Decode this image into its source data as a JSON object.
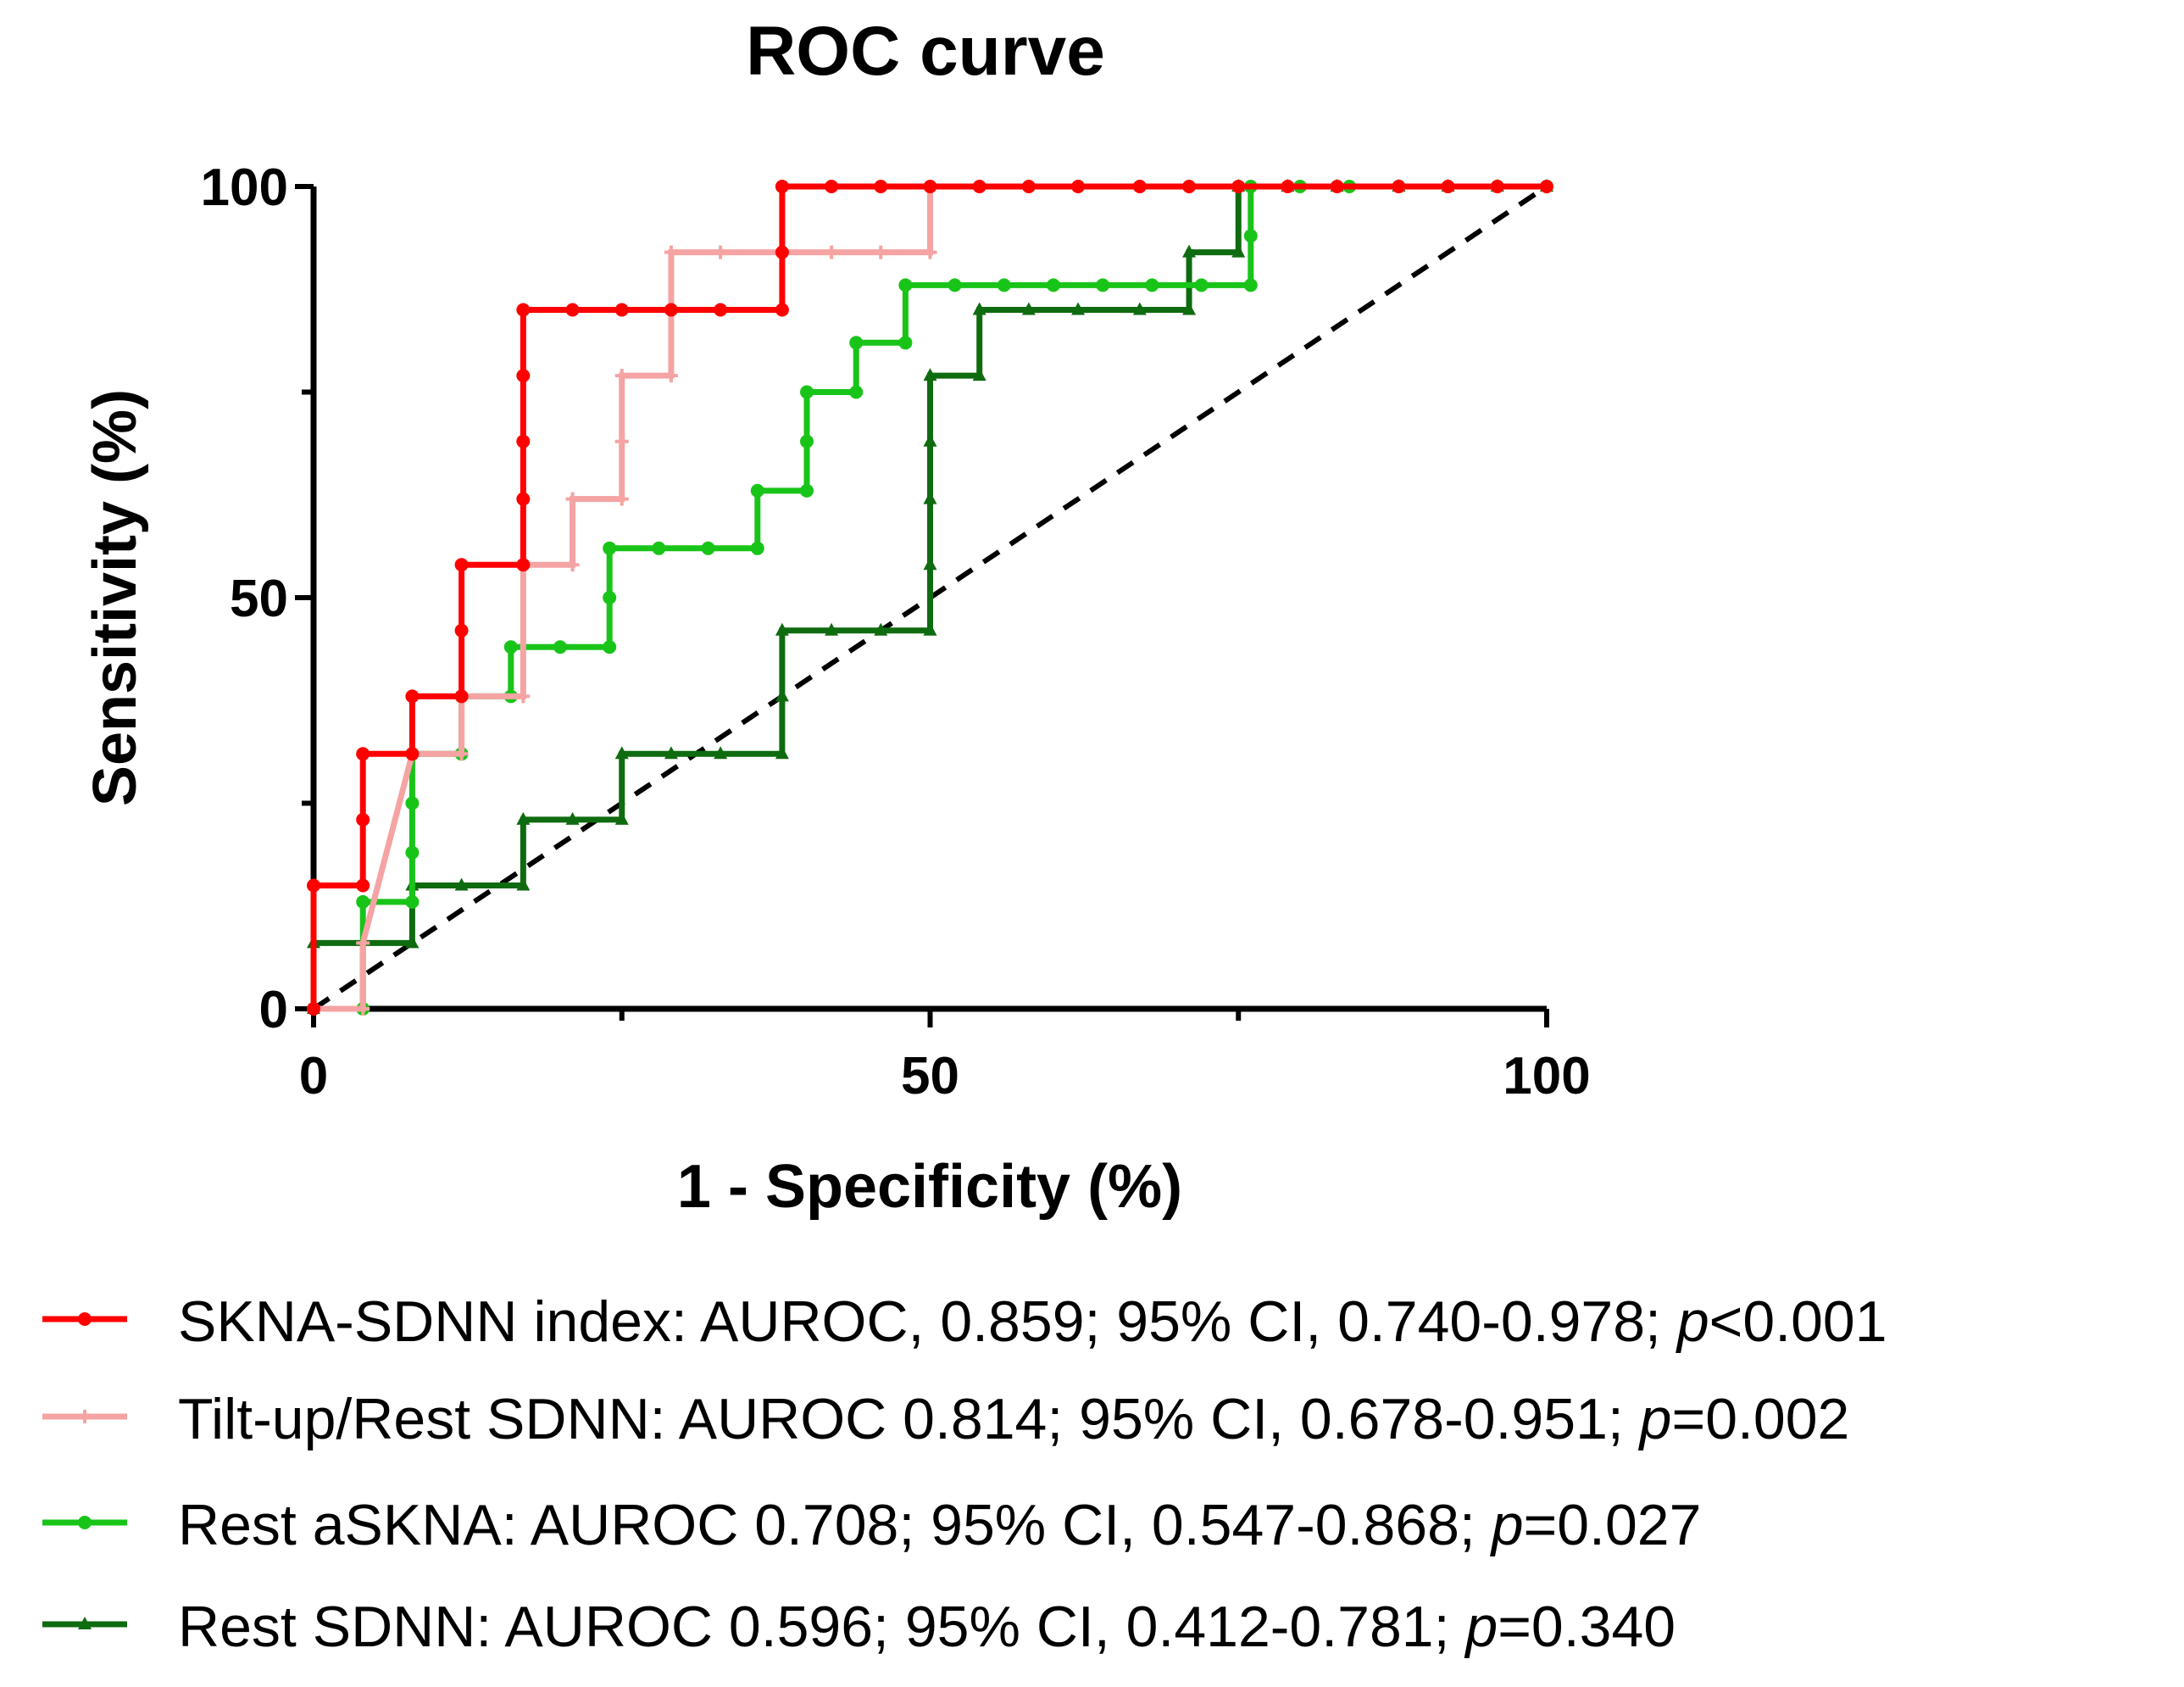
{
  "chart_data": {
    "type": "line",
    "title": "ROC curve",
    "xlabel": "1 - Specificity (%)",
    "ylabel": "Sensitivity (%)",
    "xlim": [
      0,
      100
    ],
    "ylim": [
      0,
      100
    ],
    "x_ticks": [
      "0",
      "50",
      "100"
    ],
    "y_ticks": [
      "0",
      "50",
      "100"
    ],
    "reference_line": {
      "x": [
        0,
        100
      ],
      "y": [
        0,
        100
      ],
      "style": "dashed",
      "color": "#000000"
    },
    "legend_position": "bottom",
    "series": [
      {
        "name": "SKNA-SDNN index",
        "legend_prefix": "SKNA-SDNN index: AUROC, 0.859; 95% CI, 0.740-0.978; ",
        "legend_p": "p",
        "legend_suffix": "<0.001",
        "color": "#ff0000",
        "marker": "circle",
        "x": [
          0,
          0,
          4,
          4,
          4,
          8,
          8,
          12,
          12,
          12,
          17,
          17,
          17,
          17,
          17,
          21,
          25,
          29,
          33,
          38,
          38,
          38,
          42,
          46,
          50,
          54,
          58,
          62,
          67,
          71,
          75,
          79,
          83,
          88,
          92,
          96,
          100
        ],
        "y": [
          0,
          15,
          15,
          23,
          31,
          31,
          38,
          38,
          46,
          54,
          54,
          62,
          69,
          77,
          85,
          85,
          85,
          85,
          85,
          85,
          92,
          100,
          100,
          100,
          100,
          100,
          100,
          100,
          100,
          100,
          100,
          100,
          100,
          100,
          100,
          100,
          100
        ]
      },
      {
        "name": "Tilt-up/Rest SDNN",
        "legend_prefix": "Tilt-up/Rest SDNN: AUROC 0.814; 95% CI, 0.678-0.951; ",
        "legend_p": "p",
        "legend_suffix": "=0.002",
        "color": "#f5a3a3",
        "marker": "plus",
        "x": [
          0,
          4,
          4,
          8,
          12,
          12,
          17,
          17,
          21,
          21,
          25,
          25,
          25,
          29,
          29,
          33,
          38,
          42,
          46,
          50,
          50,
          54,
          58,
          62,
          67,
          71,
          75,
          79,
          83,
          88,
          92,
          96,
          100
        ],
        "y": [
          0,
          0,
          8,
          31,
          31,
          38,
          38,
          54,
          54,
          62,
          62,
          69,
          77,
          77,
          92,
          92,
          92,
          92,
          92,
          92,
          100,
          100,
          100,
          100,
          100,
          100,
          100,
          100,
          100,
          100,
          100,
          100,
          100
        ]
      },
      {
        "name": "Rest aSKNA",
        "legend_prefix": "Rest aSKNA: AUROC 0.708; 95% CI, 0.547-0.868; ",
        "legend_p": "p",
        "legend_suffix": "=0.027",
        "color": "#19c419",
        "marker": "circle",
        "x": [
          0,
          4,
          4,
          8,
          8,
          8,
          8,
          12,
          12,
          16,
          16,
          20,
          24,
          24,
          24,
          28,
          32,
          36,
          36,
          40,
          40,
          40,
          44,
          44,
          48,
          48,
          52,
          56,
          60,
          64,
          68,
          72,
          76,
          76,
          76,
          80,
          84,
          88,
          92,
          96,
          100
        ],
        "y": [
          0,
          0,
          13,
          13,
          19,
          25,
          31,
          31,
          38,
          38,
          44,
          44,
          44,
          50,
          56,
          56,
          56,
          56,
          63,
          63,
          69,
          75,
          75,
          81,
          81,
          88,
          88,
          88,
          88,
          88,
          88,
          88,
          88,
          94,
          100,
          100,
          100,
          100,
          100,
          100,
          100
        ]
      },
      {
        "name": "Rest SDNN",
        "legend_prefix": "Rest SDNN: AUROC 0.596; 95% CI, 0.412-0.781; ",
        "legend_p": "p",
        "legend_suffix": "=0.340",
        "color": "#0f6b0f",
        "marker": "triangle",
        "x": [
          0,
          0,
          8,
          8,
          12,
          17,
          17,
          21,
          25,
          25,
          29,
          33,
          38,
          38,
          38,
          42,
          46,
          50,
          50,
          50,
          50,
          50,
          54,
          54,
          58,
          62,
          67,
          71,
          71,
          75,
          75,
          79,
          83,
          88,
          92,
          96,
          100
        ],
        "y": [
          0,
          8,
          8,
          15,
          15,
          15,
          23,
          23,
          23,
          31,
          31,
          31,
          31,
          38,
          46,
          46,
          46,
          46,
          54,
          62,
          69,
          77,
          77,
          85,
          85,
          85,
          85,
          85,
          92,
          92,
          100,
          100,
          100,
          100,
          100,
          100,
          100
        ]
      }
    ]
  }
}
